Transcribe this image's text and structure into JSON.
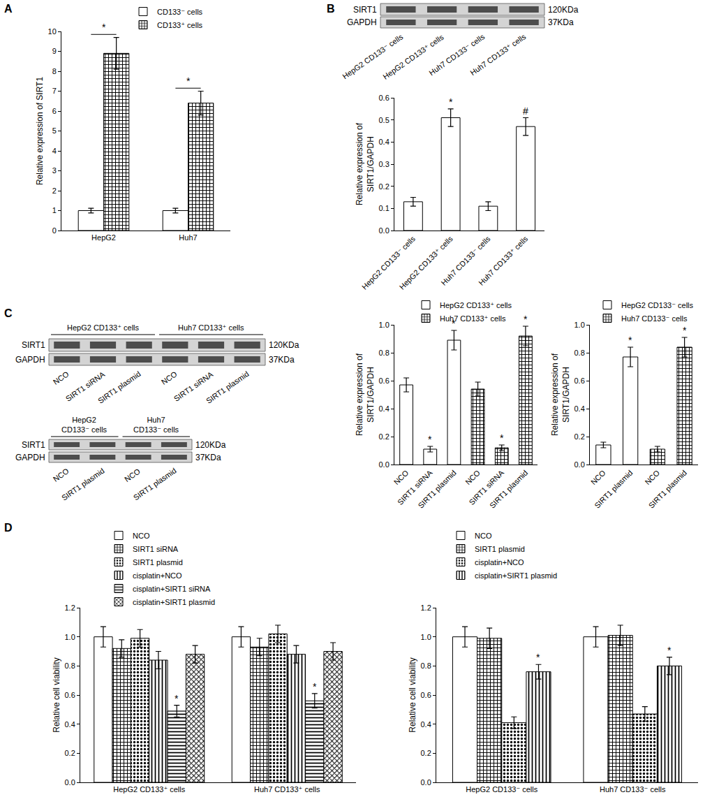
{
  "panel_labels": [
    "A",
    "B",
    "C",
    "D"
  ],
  "blots": [
    {
      "lanes": [
        "HepG2 CD133⁻ cells",
        "HepG2 CD133⁺ cells",
        "Huh7 CD133⁻ cells",
        "Huh7 CD133⁺ cells"
      ],
      "rows": [
        {
          "label": "SIRT1",
          "size": "120KDa"
        },
        {
          "label": "GAPDH",
          "size": "37KDa"
        }
      ]
    },
    {
      "groups": [
        "HepG2 CD133⁺ cells",
        "Huh7 CD133⁺ cells"
      ],
      "lanes": [
        "NCO",
        "SIRT1 siRNA",
        "SIRT1 plasmid",
        "NCO",
        "SIRT1 siRNA",
        "SIRT1 plasmid"
      ],
      "rows": [
        {
          "label": "SIRT1",
          "size": "120KDa"
        },
        {
          "label": "GAPDH",
          "size": "37KDa"
        }
      ]
    },
    {
      "groups": [
        "HepG2\nCD133⁻ cells",
        "Huh7\nCD133⁻ cells"
      ],
      "lanes": [
        "NCO",
        "SIRT1 plasmid",
        "NCO",
        "SIRT1 plasmid"
      ],
      "rows": [
        {
          "label": "SIRT1",
          "size": "120KDa"
        },
        {
          "label": "GAPDH",
          "size": "37KDa"
        }
      ]
    }
  ],
  "chart_data": [
    {
      "type": "bar",
      "categories": [
        "HepG2",
        "Huh7"
      ],
      "ylabel": "Relative expression of SIRT1",
      "ylim": [
        0,
        10
      ],
      "yticks": [
        0,
        1,
        2,
        3,
        4,
        5,
        6,
        7,
        8,
        9,
        10
      ],
      "legend": "top",
      "series": [
        {
          "name": "CD133⁻ cells",
          "color": "#ffffff",
          "marker": "none",
          "values": [
            1.0,
            1.0
          ],
          "errors": [
            0.12,
            0.12
          ]
        },
        {
          "name": "CD133⁺ cells",
          "color": "#ffffff",
          "marker": "checker",
          "values": [
            8.9,
            6.4
          ],
          "errors": [
            0.8,
            0.6
          ]
        }
      ],
      "brackets": [
        {
          "category": "HepG2",
          "text": "*"
        },
        {
          "category": "Huh7",
          "text": "*"
        }
      ]
    },
    {
      "type": "bar",
      "categories": [
        "HepG2 CD133⁻ cells",
        "HepG2 CD133⁺ cells",
        "Huh7 CD133⁻ cells",
        "Huh7 CD133⁺ cells"
      ],
      "ylabel": "Relative expression of\nSIRT1/GAPDH",
      "ylim": [
        0,
        0.6
      ],
      "yticks": [
        {
          "value": 0,
          "label": "0.0"
        },
        {
          "value": 0.1,
          "label": "0.1"
        },
        {
          "value": 0.2,
          "label": "0.2"
        },
        {
          "value": 0.3,
          "label": "0.3"
        },
        {
          "value": 0.4,
          "label": "0.4"
        },
        {
          "value": 0.5,
          "label": "0.5"
        },
        {
          "value": 0.6,
          "label": "0.6"
        }
      ],
      "series": [
        {
          "color": "#ffffff",
          "marker": "none",
          "values": [
            0.13,
            0.51,
            0.11,
            0.47
          ],
          "errors": [
            0.02,
            0.04,
            0.02,
            0.04
          ],
          "marks": [
            null,
            "*",
            null,
            "#"
          ]
        }
      ]
    },
    {
      "type": "bar",
      "categories": [
        "NCO",
        "SIRT1 siRNA",
        "SIRT1 plasmid",
        "NCO",
        "SIRT1 siRNA",
        "SIRT1 plasmid"
      ],
      "ylabel": "Relative expression of\nSIRT1/GAPDH",
      "ylim": [
        0,
        1.0
      ],
      "yticks": [
        {
          "value": 0,
          "label": "0.0"
        },
        {
          "value": 0.2,
          "label": "0.2"
        },
        {
          "value": 0.4,
          "label": "0.4"
        },
        {
          "value": 0.6,
          "label": "0.6"
        },
        {
          "value": 0.8,
          "label": "0.8"
        },
        {
          "value": 1.0,
          "label": "1.0"
        }
      ],
      "legend": "top",
      "series": [
        {
          "name": "HepG2 CD133⁺ cells",
          "color": "#ffffff",
          "marker": "none",
          "values": [
            0.57,
            0.11,
            0.89,
            null,
            null,
            null
          ],
          "errors": [
            0.05,
            0.02,
            0.07,
            null,
            null,
            null
          ],
          "marks": [
            null,
            "*",
            "*",
            null,
            null,
            null
          ]
        },
        {
          "name": "Huh7 CD133⁺ cells",
          "color": "#ffffff",
          "marker": "checker",
          "values": [
            null,
            null,
            null,
            0.54,
            0.12,
            0.92
          ],
          "errors": [
            null,
            null,
            null,
            0.05,
            0.02,
            0.07
          ],
          "marks": [
            null,
            null,
            null,
            null,
            "*",
            "*"
          ]
        }
      ]
    },
    {
      "type": "bar",
      "categories": [
        "NCO",
        "SIRT1 plasmid",
        "NCO",
        "SIRT1 plasmid"
      ],
      "ylabel": "Relative expression of\nSIRT1/GAPDH",
      "ylim": [
        0,
        1.0
      ],
      "yticks": [
        {
          "value": 0,
          "label": "0.0"
        },
        {
          "value": 0.2,
          "label": "0.2"
        },
        {
          "value": 0.4,
          "label": "0.4"
        },
        {
          "value": 0.6,
          "label": "0.6"
        },
        {
          "value": 0.8,
          "label": "0.8"
        },
        {
          "value": 1.0,
          "label": "1.0"
        }
      ],
      "legend": "top",
      "series": [
        {
          "name": "HepG2 CD133⁻ cells",
          "color": "#ffffff",
          "marker": "none",
          "values": [
            0.14,
            0.77,
            null,
            null
          ],
          "errors": [
            0.02,
            0.07,
            null,
            null
          ],
          "marks": [
            null,
            "*",
            null,
            null
          ]
        },
        {
          "name": "Huh7 CD133⁻ cells",
          "color": "#ffffff",
          "marker": "checker",
          "values": [
            null,
            null,
            0.11,
            0.84
          ],
          "errors": [
            null,
            null,
            0.02,
            0.07
          ],
          "marks": [
            null,
            null,
            null,
            "*"
          ]
        }
      ]
    },
    {
      "type": "bar",
      "categories": [
        "HepG2 CD133⁺ cells",
        "Huh7 CD133⁺ cells"
      ],
      "ylabel": "Relative cell viability",
      "ylim": [
        0,
        1.2
      ],
      "yticks": [
        {
          "value": 0,
          "label": "0.0"
        },
        {
          "value": 0.2,
          "label": "0.2"
        },
        {
          "value": 0.4,
          "label": "0.4"
        },
        {
          "value": 0.6,
          "label": "0.6"
        },
        {
          "value": 0.8,
          "label": "0.8"
        },
        {
          "value": 1.0,
          "label": "1.0"
        },
        {
          "value": 1.2,
          "label": "1.2"
        }
      ],
      "legend": "top",
      "series": [
        {
          "name": "NCO",
          "color": "#ffffff",
          "marker": "none",
          "values": [
            1.0,
            1.0
          ],
          "errors": [
            0.07,
            0.07
          ]
        },
        {
          "name": "SIRT1 siRNA",
          "color": "#ffffff",
          "marker": "checker",
          "values": [
            0.92,
            0.93
          ],
          "errors": [
            0.06,
            0.06
          ]
        },
        {
          "name": "SIRT1 plasmid",
          "color": "#ffffff",
          "marker": "dots",
          "values": [
            0.99,
            1.02
          ],
          "errors": [
            0.06,
            0.06
          ]
        },
        {
          "name": "cisplatin+NCO",
          "color": "#ffffff",
          "marker": "vertical",
          "values": [
            0.84,
            0.88
          ],
          "errors": [
            0.06,
            0.06
          ]
        },
        {
          "name": "cisplatin+SIRT1 siRNA",
          "color": "#ffffff",
          "marker": "horizontal",
          "values": [
            0.49,
            0.56
          ],
          "errors": [
            0.04,
            0.05
          ],
          "marks": [
            "*",
            "*"
          ]
        },
        {
          "name": "cisplatin+SIRT1 plasmid",
          "color": "#ffffff",
          "marker": "cross",
          "values": [
            0.88,
            0.9
          ],
          "errors": [
            0.06,
            0.06
          ]
        }
      ]
    },
    {
      "type": "bar",
      "categories": [
        "HepG2 CD133⁻ cells",
        "Huh7 CD133⁻ cells"
      ],
      "ylabel": "Relative cell viability",
      "ylim": [
        0,
        1.2
      ],
      "yticks": [
        {
          "value": 0,
          "label": "0.0"
        },
        {
          "value": 0.2,
          "label": "0.2"
        },
        {
          "value": 0.4,
          "label": "0.4"
        },
        {
          "value": 0.6,
          "label": "0.6"
        },
        {
          "value": 0.8,
          "label": "0.8"
        },
        {
          "value": 1.0,
          "label": "1.0"
        },
        {
          "value": 1.2,
          "label": "1.2"
        }
      ],
      "legend": "top",
      "series": [
        {
          "name": "NCO",
          "color": "#ffffff",
          "marker": "none",
          "values": [
            1.0,
            1.0
          ],
          "errors": [
            0.07,
            0.07
          ]
        },
        {
          "name": "SIRT1 plasmid",
          "color": "#ffffff",
          "marker": "checker",
          "values": [
            0.99,
            1.01
          ],
          "errors": [
            0.07,
            0.07
          ]
        },
        {
          "name": "cisplatin+NCO",
          "color": "#ffffff",
          "marker": "dots",
          "values": [
            0.41,
            0.47
          ],
          "errors": [
            0.04,
            0.05
          ]
        },
        {
          "name": "cisplatin+SIRT1 plasmid",
          "color": "#ffffff",
          "marker": "vertical",
          "values": [
            0.76,
            0.8
          ],
          "errors": [
            0.05,
            0.06
          ],
          "marks": [
            "*",
            "*"
          ]
        }
      ]
    }
  ]
}
